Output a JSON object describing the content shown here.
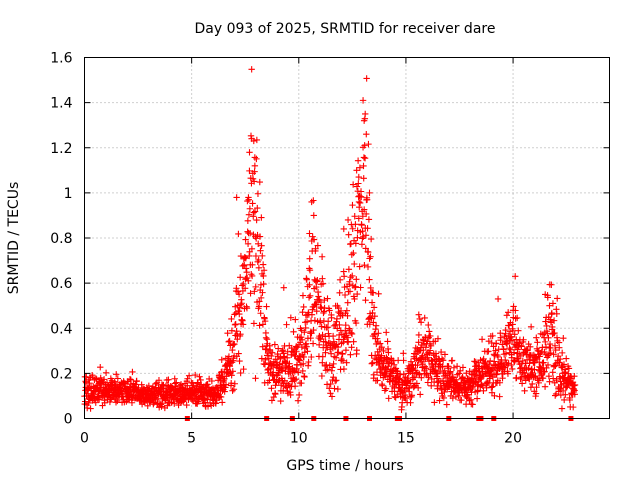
{
  "chart_data": {
    "type": "scatter",
    "title": "Day 093 of 2025, SRMTID for receiver dare",
    "xlabel": "GPS time / hours",
    "ylabel": "SRMTID / TECUs",
    "xlim": [
      0,
      24.5
    ],
    "ylim": [
      0,
      1.6
    ],
    "xticks": [
      0,
      5,
      10,
      15,
      20
    ],
    "xtick_labels": [
      "0",
      "5",
      "10",
      "15",
      "20"
    ],
    "yticks": [
      0,
      0.2,
      0.4,
      0.6,
      0.8,
      1.0,
      1.2,
      1.4,
      1.6
    ],
    "ytick_labels": [
      "0",
      "0.2",
      "0.4",
      "0.6",
      "0.8",
      "1",
      "1.2",
      "1.4",
      "1.6"
    ],
    "grid": true,
    "marker": "plus",
    "color": "#ff0000",
    "baseline_markers_x": [
      4.8,
      8.5,
      9.7,
      10.7,
      12.2,
      13.3,
      14.6,
      14.7,
      17.0,
      18.4,
      18.5,
      19.1,
      22.7
    ],
    "envelope": [
      [
        0.0,
        0.1,
        0.05
      ],
      [
        0.5,
        0.13,
        0.05
      ],
      [
        1.0,
        0.13,
        0.04
      ],
      [
        2.0,
        0.12,
        0.04
      ],
      [
        3.0,
        0.1,
        0.03
      ],
      [
        4.0,
        0.11,
        0.04
      ],
      [
        5.0,
        0.11,
        0.04
      ],
      [
        6.0,
        0.11,
        0.04
      ],
      [
        6.5,
        0.16,
        0.06
      ],
      [
        7.0,
        0.35,
        0.15
      ],
      [
        7.4,
        0.5,
        0.2
      ],
      [
        7.8,
        0.85,
        0.3
      ],
      [
        8.1,
        0.7,
        0.3
      ],
      [
        8.4,
        0.4,
        0.2
      ],
      [
        8.6,
        0.22,
        0.08
      ],
      [
        9.0,
        0.2,
        0.08
      ],
      [
        9.5,
        0.22,
        0.1
      ],
      [
        10.0,
        0.25,
        0.1
      ],
      [
        10.4,
        0.4,
        0.2
      ],
      [
        10.7,
        0.6,
        0.25
      ],
      [
        11.0,
        0.4,
        0.2
      ],
      [
        11.5,
        0.3,
        0.15
      ],
      [
        12.0,
        0.35,
        0.15
      ],
      [
        12.4,
        0.55,
        0.25
      ],
      [
        12.8,
        0.8,
        0.35
      ],
      [
        13.1,
        1.05,
        0.3
      ],
      [
        13.4,
        0.4,
        0.2
      ],
      [
        13.8,
        0.25,
        0.1
      ],
      [
        14.3,
        0.2,
        0.08
      ],
      [
        14.8,
        0.14,
        0.06
      ],
      [
        15.3,
        0.18,
        0.08
      ],
      [
        15.7,
        0.32,
        0.12
      ],
      [
        16.2,
        0.25,
        0.1
      ],
      [
        16.7,
        0.18,
        0.07
      ],
      [
        17.3,
        0.15,
        0.05
      ],
      [
        18.0,
        0.14,
        0.05
      ],
      [
        18.6,
        0.22,
        0.08
      ],
      [
        19.0,
        0.2,
        0.08
      ],
      [
        19.5,
        0.3,
        0.12
      ],
      [
        20.0,
        0.35,
        0.15
      ],
      [
        20.5,
        0.22,
        0.1
      ],
      [
        21.0,
        0.2,
        0.08
      ],
      [
        21.5,
        0.3,
        0.12
      ],
      [
        21.8,
        0.4,
        0.15
      ],
      [
        22.2,
        0.2,
        0.1
      ],
      [
        22.5,
        0.15,
        0.06
      ],
      [
        22.9,
        0.13,
        0.04
      ]
    ],
    "spikes": [
      [
        7.8,
        1.24
      ],
      [
        7.9,
        1.23
      ],
      [
        7.7,
        1.18
      ],
      [
        7.95,
        1.12
      ],
      [
        7.65,
        0.98
      ],
      [
        7.1,
        0.98
      ],
      [
        7.3,
        0.72
      ],
      [
        10.6,
        0.96
      ],
      [
        10.7,
        0.9
      ],
      [
        10.5,
        0.82
      ],
      [
        11.1,
        0.62
      ],
      [
        13.0,
        1.41
      ],
      [
        13.1,
        1.35
      ],
      [
        13.05,
        1.32
      ],
      [
        13.15,
        1.26
      ],
      [
        12.7,
        1.1
      ],
      [
        12.8,
        1.07
      ],
      [
        13.3,
        1.0
      ],
      [
        12.3,
        0.88
      ],
      [
        12.1,
        0.84
      ],
      [
        9.3,
        0.58
      ],
      [
        15.6,
        0.46
      ],
      [
        20.1,
        0.63
      ],
      [
        19.3,
        0.53
      ],
      [
        21.5,
        0.55
      ],
      [
        21.7,
        0.5
      ]
    ],
    "cutoff_x": 22.9
  }
}
